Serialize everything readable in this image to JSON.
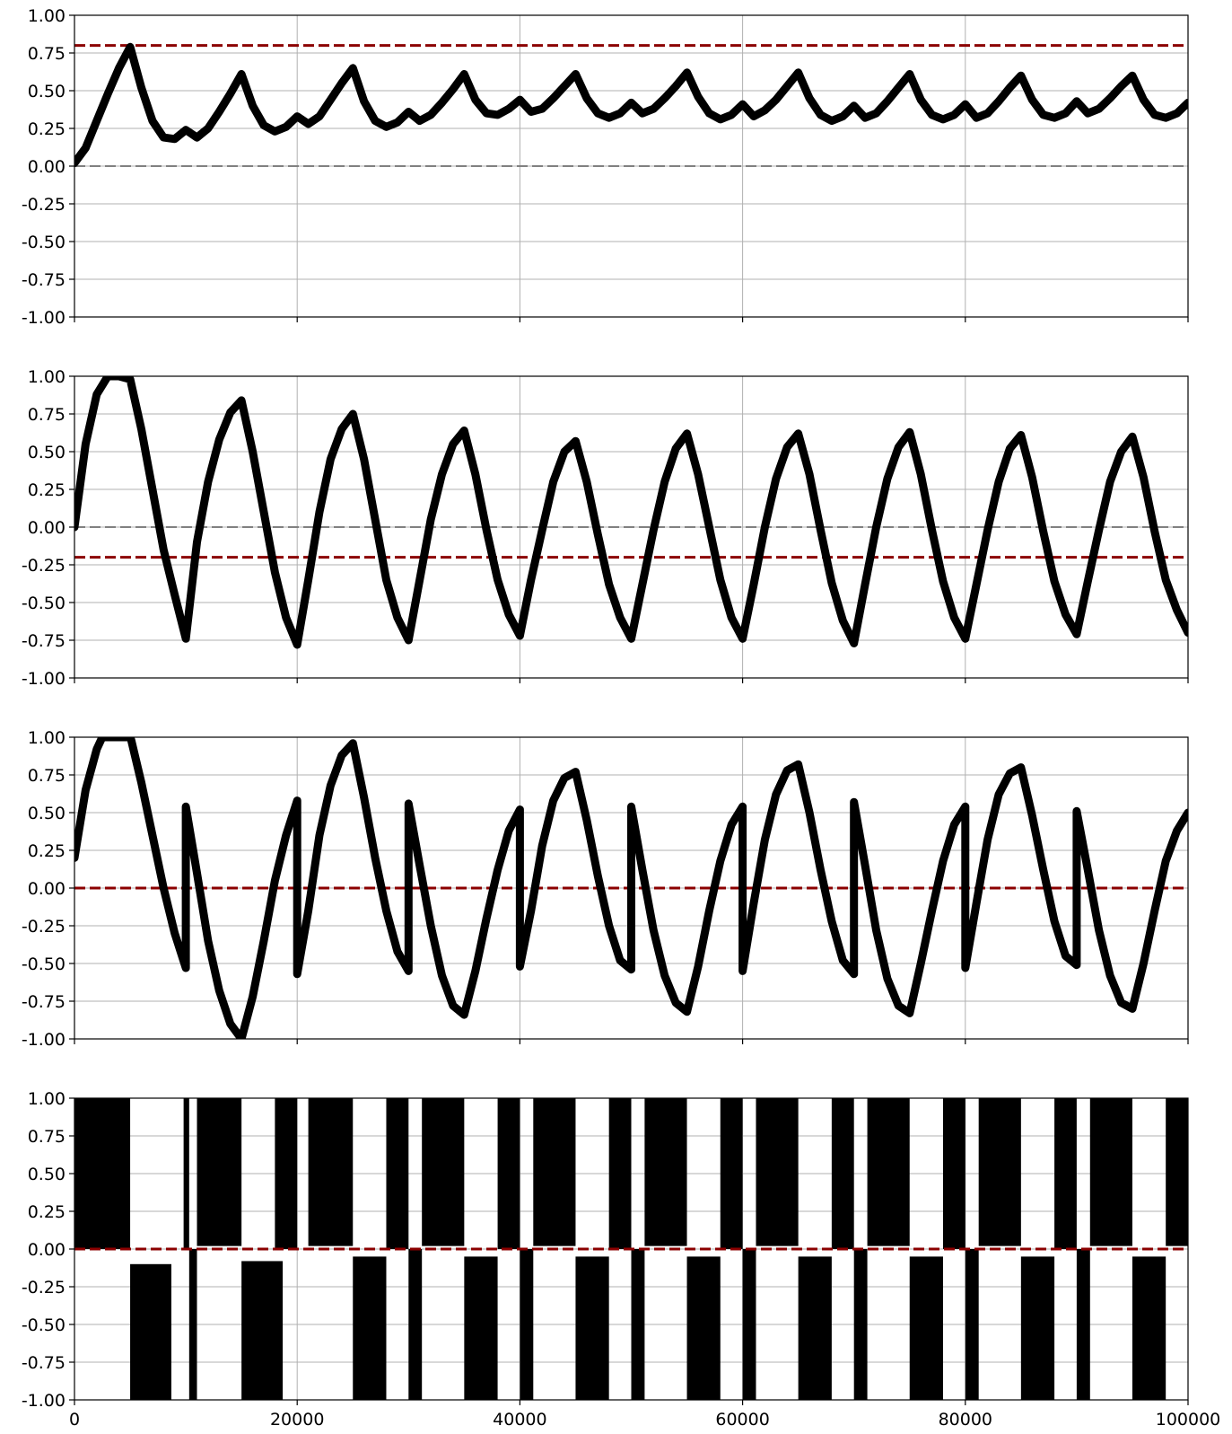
{
  "chart_data": [
    {
      "type": "line",
      "xlim": [
        0,
        100000
      ],
      "ylim": [
        -1,
        1
      ],
      "yticks": [
        "-1.00",
        "-0.75",
        "-0.50",
        "-0.25",
        "0.00",
        "0.25",
        "0.50",
        "0.75",
        "1.00"
      ],
      "xticks": [],
      "grid": true,
      "reference_lines": [
        {
          "y": 0.8,
          "color": "#8b0000",
          "style": "dashed"
        },
        {
          "y": 0.0,
          "color": "#808080",
          "style": "dashed"
        }
      ],
      "series": [
        {
          "color": "#000000",
          "x": [
            0,
            1000,
            2000,
            3000,
            4000,
            5000,
            6000,
            7000,
            8000,
            9000,
            10000,
            11000,
            12000,
            13000,
            14000,
            15000,
            16000,
            17000,
            18000,
            19000,
            20000,
            21000,
            22000,
            23000,
            24000,
            25000,
            26000,
            27000,
            28000,
            29000,
            30000,
            31000,
            32000,
            33000,
            34000,
            35000,
            36000,
            37000,
            38000,
            39000,
            40000,
            41000,
            42000,
            43000,
            44000,
            45000,
            46000,
            47000,
            48000,
            49000,
            50000,
            51000,
            52000,
            53000,
            54000,
            55000,
            56000,
            57000,
            58000,
            59000,
            60000,
            61000,
            62000,
            63000,
            64000,
            65000,
            66000,
            67000,
            68000,
            69000,
            70000,
            71000,
            72000,
            73000,
            74000,
            75000,
            76000,
            77000,
            78000,
            79000,
            80000,
            81000,
            82000,
            83000,
            84000,
            85000,
            86000,
            87000,
            88000,
            89000,
            90000,
            91000,
            92000,
            93000,
            94000,
            95000,
            96000,
            97000,
            98000,
            99000,
            100000
          ],
          "y": [
            0.02,
            0.12,
            0.3,
            0.48,
            0.65,
            0.79,
            0.52,
            0.3,
            0.19,
            0.18,
            0.24,
            0.19,
            0.25,
            0.36,
            0.48,
            0.61,
            0.4,
            0.27,
            0.23,
            0.26,
            0.33,
            0.28,
            0.33,
            0.44,
            0.55,
            0.65,
            0.43,
            0.3,
            0.26,
            0.29,
            0.36,
            0.3,
            0.34,
            0.42,
            0.51,
            0.61,
            0.44,
            0.35,
            0.34,
            0.38,
            0.44,
            0.36,
            0.38,
            0.45,
            0.53,
            0.61,
            0.45,
            0.35,
            0.32,
            0.35,
            0.42,
            0.35,
            0.38,
            0.45,
            0.53,
            0.62,
            0.46,
            0.35,
            0.31,
            0.34,
            0.41,
            0.33,
            0.37,
            0.44,
            0.53,
            0.62,
            0.45,
            0.34,
            0.3,
            0.33,
            0.4,
            0.32,
            0.35,
            0.43,
            0.52,
            0.61,
            0.44,
            0.34,
            0.31,
            0.34,
            0.41,
            0.32,
            0.35,
            0.43,
            0.52,
            0.6,
            0.44,
            0.34,
            0.32,
            0.35,
            0.43,
            0.35,
            0.38,
            0.45,
            0.53,
            0.6,
            0.44,
            0.34,
            0.32,
            0.35,
            0.42
          ]
        }
      ]
    },
    {
      "type": "line",
      "xlim": [
        0,
        100000
      ],
      "ylim": [
        -1,
        1
      ],
      "yticks": [
        "-1.00",
        "-0.75",
        "-0.50",
        "-0.25",
        "0.00",
        "0.25",
        "0.50",
        "0.75",
        "1.00"
      ],
      "xticks": [],
      "grid": true,
      "reference_lines": [
        {
          "y": -0.2,
          "color": "#8b0000",
          "style": "dashed"
        },
        {
          "y": 0.0,
          "color": "#808080",
          "style": "dashed"
        }
      ],
      "series": [
        {
          "color": "#000000",
          "x": [
            0,
            1000,
            2000,
            3000,
            4000,
            5000,
            6000,
            7000,
            8000,
            9000,
            10000,
            11000,
            12000,
            13000,
            14000,
            15000,
            16000,
            17000,
            18000,
            19000,
            20000,
            21000,
            22000,
            23000,
            24000,
            25000,
            26000,
            27000,
            28000,
            29000,
            30000,
            31000,
            32000,
            33000,
            34000,
            35000,
            36000,
            37000,
            38000,
            39000,
            40000,
            41000,
            42000,
            43000,
            44000,
            45000,
            46000,
            47000,
            48000,
            49000,
            50000,
            51000,
            52000,
            53000,
            54000,
            55000,
            56000,
            57000,
            58000,
            59000,
            60000,
            61000,
            62000,
            63000,
            64000,
            65000,
            66000,
            67000,
            68000,
            69000,
            70000,
            71000,
            72000,
            73000,
            74000,
            75000,
            76000,
            77000,
            78000,
            79000,
            80000,
            81000,
            82000,
            83000,
            84000,
            85000,
            86000,
            87000,
            88000,
            89000,
            90000,
            91000,
            92000,
            93000,
            94000,
            95000,
            96000,
            97000,
            98000,
            99000,
            100000
          ],
          "y": [
            0.0,
            0.55,
            0.88,
            1.0,
            1.0,
            0.98,
            0.65,
            0.25,
            -0.15,
            -0.45,
            -0.74,
            -0.1,
            0.3,
            0.58,
            0.76,
            0.84,
            0.5,
            0.1,
            -0.3,
            -0.6,
            -0.78,
            -0.35,
            0.1,
            0.45,
            0.65,
            0.75,
            0.45,
            0.05,
            -0.35,
            -0.6,
            -0.75,
            -0.35,
            0.05,
            0.35,
            0.55,
            0.64,
            0.35,
            -0.02,
            -0.35,
            -0.58,
            -0.72,
            -0.35,
            -0.02,
            0.3,
            0.5,
            0.57,
            0.3,
            -0.05,
            -0.38,
            -0.6,
            -0.74,
            -0.38,
            -0.02,
            0.3,
            0.52,
            0.62,
            0.35,
            0.0,
            -0.35,
            -0.6,
            -0.74,
            -0.38,
            0.0,
            0.32,
            0.53,
            0.62,
            0.35,
            -0.02,
            -0.37,
            -0.62,
            -0.77,
            -0.38,
            0.0,
            0.32,
            0.53,
            0.63,
            0.35,
            -0.02,
            -0.36,
            -0.6,
            -0.74,
            -0.38,
            -0.02,
            0.3,
            0.52,
            0.61,
            0.33,
            -0.03,
            -0.36,
            -0.58,
            -0.71,
            -0.36,
            -0.02,
            0.3,
            0.5,
            0.6,
            0.33,
            -0.03,
            -0.35,
            -0.55,
            -0.7
          ]
        }
      ]
    },
    {
      "type": "line",
      "xlim": [
        0,
        100000
      ],
      "ylim": [
        -1,
        1
      ],
      "yticks": [
        "-1.00",
        "-0.75",
        "-0.50",
        "-0.25",
        "0.00",
        "0.25",
        "0.50",
        "0.75",
        "1.00"
      ],
      "xticks": [],
      "grid": true,
      "reference_lines": [
        {
          "y": 0.0,
          "color": "#808080",
          "style": "dashed"
        },
        {
          "y": 0.0,
          "color": "#8b0000",
          "style": "dashed"
        }
      ],
      "series": [
        {
          "color": "#000000",
          "x": [
            0,
            1000,
            2000,
            2500,
            5000,
            5100,
            6000,
            7000,
            8000,
            9000,
            10000,
            10001,
            11000,
            12000,
            13000,
            14000,
            15000,
            16000,
            17000,
            18000,
            19000,
            20000,
            20001,
            21000,
            22000,
            23000,
            24000,
            25000,
            26000,
            27000,
            28000,
            29000,
            30000,
            30001,
            31000,
            32000,
            33000,
            34000,
            35000,
            36000,
            37000,
            38000,
            39000,
            40000,
            40001,
            41000,
            42000,
            43000,
            44000,
            45000,
            46000,
            47000,
            48000,
            49000,
            50000,
            50001,
            51000,
            52000,
            53000,
            54000,
            55000,
            56000,
            57000,
            58000,
            59000,
            60000,
            60001,
            61000,
            62000,
            63000,
            64000,
            65000,
            66000,
            67000,
            68000,
            69000,
            70000,
            70001,
            71000,
            72000,
            73000,
            74000,
            75000,
            76000,
            77000,
            78000,
            79000,
            80000,
            80001,
            81000,
            82000,
            83000,
            84000,
            85000,
            86000,
            87000,
            88000,
            89000,
            90000,
            90001,
            91000,
            92000,
            93000,
            94000,
            95000,
            96000,
            97000,
            98000,
            99000,
            100000
          ],
          "y": [
            0.2,
            0.65,
            0.92,
            1.0,
            1.0,
            0.98,
            0.7,
            0.35,
            0.0,
            -0.3,
            -0.53,
            0.54,
            0.1,
            -0.35,
            -0.68,
            -0.9,
            -1.0,
            -0.72,
            -0.35,
            0.05,
            0.35,
            0.58,
            -0.57,
            -0.15,
            0.35,
            0.68,
            0.88,
            0.96,
            0.6,
            0.2,
            -0.15,
            -0.42,
            -0.55,
            0.56,
            0.15,
            -0.25,
            -0.58,
            -0.78,
            -0.84,
            -0.55,
            -0.2,
            0.12,
            0.38,
            0.52,
            -0.52,
            -0.15,
            0.28,
            0.58,
            0.73,
            0.77,
            0.45,
            0.08,
            -0.25,
            -0.48,
            -0.54,
            0.54,
            0.12,
            -0.28,
            -0.58,
            -0.76,
            -0.82,
            -0.52,
            -0.15,
            0.18,
            0.42,
            0.54,
            -0.55,
            -0.1,
            0.32,
            0.62,
            0.78,
            0.82,
            0.5,
            0.12,
            -0.22,
            -0.48,
            -0.57,
            0.57,
            0.15,
            -0.28,
            -0.6,
            -0.78,
            -0.83,
            -0.5,
            -0.15,
            0.18,
            0.42,
            0.54,
            -0.53,
            -0.1,
            0.32,
            0.62,
            0.76,
            0.8,
            0.48,
            0.12,
            -0.22,
            -0.45,
            -0.51,
            0.51,
            0.12,
            -0.28,
            -0.58,
            -0.76,
            -0.8,
            -0.5,
            -0.15,
            0.18,
            0.38,
            0.5
          ]
        }
      ]
    },
    {
      "type": "area",
      "xlim": [
        0,
        100000
      ],
      "ylim": [
        -1,
        1
      ],
      "yticks": [
        "-1.00",
        "-0.75",
        "-0.50",
        "-0.25",
        "0.00",
        "0.25",
        "0.50",
        "0.75",
        "1.00"
      ],
      "xticks": [
        "0",
        "20000",
        "40000",
        "60000",
        "80000",
        "100000"
      ],
      "grid": true,
      "reference_lines": [
        {
          "y": 0.0,
          "color": "#808080",
          "style": "dashed"
        },
        {
          "y": 0.0,
          "color": "#8b0000",
          "style": "dashed"
        }
      ],
      "bands": [
        {
          "x0": 0,
          "x1": 5000,
          "y0": 0.0,
          "y1": 1.0
        },
        {
          "x0": 5000,
          "x1": 8700,
          "y0": -1.0,
          "y1": -0.1
        },
        {
          "x0": 9800,
          "x1": 10300,
          "y0": 0.0,
          "y1": 1.0
        },
        {
          "x0": 10300,
          "x1": 11000,
          "y0": -1.0,
          "y1": 0.0
        },
        {
          "x0": 11000,
          "x1": 15000,
          "y0": 0.02,
          "y1": 1.0
        },
        {
          "x0": 15000,
          "x1": 18700,
          "y0": -1.0,
          "y1": -0.08
        },
        {
          "x0": 18000,
          "x1": 20000,
          "y0": 0.0,
          "y1": 1.0
        },
        {
          "x0": 21000,
          "x1": 25000,
          "y0": 0.02,
          "y1": 1.0
        },
        {
          "x0": 25000,
          "x1": 28000,
          "y0": -1.0,
          "y1": -0.05
        },
        {
          "x0": 28000,
          "x1": 30000,
          "y0": 0.0,
          "y1": 1.0
        },
        {
          "x0": 30000,
          "x1": 31200,
          "y0": -1.0,
          "y1": 0.0
        },
        {
          "x0": 31200,
          "x1": 35000,
          "y0": 0.02,
          "y1": 1.0
        },
        {
          "x0": 35000,
          "x1": 38000,
          "y0": -1.0,
          "y1": -0.05
        },
        {
          "x0": 38000,
          "x1": 40000,
          "y0": 0.0,
          "y1": 1.0
        },
        {
          "x0": 40000,
          "x1": 41200,
          "y0": -1.0,
          "y1": 0.0
        },
        {
          "x0": 41200,
          "x1": 45000,
          "y0": 0.02,
          "y1": 1.0
        },
        {
          "x0": 45000,
          "x1": 48000,
          "y0": -1.0,
          "y1": -0.05
        },
        {
          "x0": 48000,
          "x1": 50000,
          "y0": 0.0,
          "y1": 1.0
        },
        {
          "x0": 50000,
          "x1": 51200,
          "y0": -1.0,
          "y1": 0.0
        },
        {
          "x0": 51200,
          "x1": 55000,
          "y0": 0.02,
          "y1": 1.0
        },
        {
          "x0": 55000,
          "x1": 58000,
          "y0": -1.0,
          "y1": -0.05
        },
        {
          "x0": 58000,
          "x1": 60000,
          "y0": 0.0,
          "y1": 1.0
        },
        {
          "x0": 60000,
          "x1": 61200,
          "y0": -1.0,
          "y1": 0.0
        },
        {
          "x0": 61200,
          "x1": 65000,
          "y0": 0.02,
          "y1": 1.0
        },
        {
          "x0": 65000,
          "x1": 68000,
          "y0": -1.0,
          "y1": -0.05
        },
        {
          "x0": 68000,
          "x1": 70000,
          "y0": 0.0,
          "y1": 1.0
        },
        {
          "x0": 70000,
          "x1": 71200,
          "y0": -1.0,
          "y1": 0.0
        },
        {
          "x0": 71200,
          "x1": 75000,
          "y0": 0.02,
          "y1": 1.0
        },
        {
          "x0": 75000,
          "x1": 78000,
          "y0": -1.0,
          "y1": -0.05
        },
        {
          "x0": 78000,
          "x1": 80000,
          "y0": 0.0,
          "y1": 1.0
        },
        {
          "x0": 80000,
          "x1": 81200,
          "y0": -1.0,
          "y1": 0.0
        },
        {
          "x0": 81200,
          "x1": 85000,
          "y0": 0.02,
          "y1": 1.0
        },
        {
          "x0": 85000,
          "x1": 88000,
          "y0": -1.0,
          "y1": -0.05
        },
        {
          "x0": 88000,
          "x1": 90000,
          "y0": 0.0,
          "y1": 1.0
        },
        {
          "x0": 90000,
          "x1": 91200,
          "y0": -1.0,
          "y1": 0.0
        },
        {
          "x0": 91200,
          "x1": 95000,
          "y0": 0.02,
          "y1": 1.0
        },
        {
          "x0": 95000,
          "x1": 98000,
          "y0": -1.0,
          "y1": -0.05
        },
        {
          "x0": 98000,
          "x1": 100000,
          "y0": 0.02,
          "y1": 1.0
        }
      ]
    }
  ]
}
